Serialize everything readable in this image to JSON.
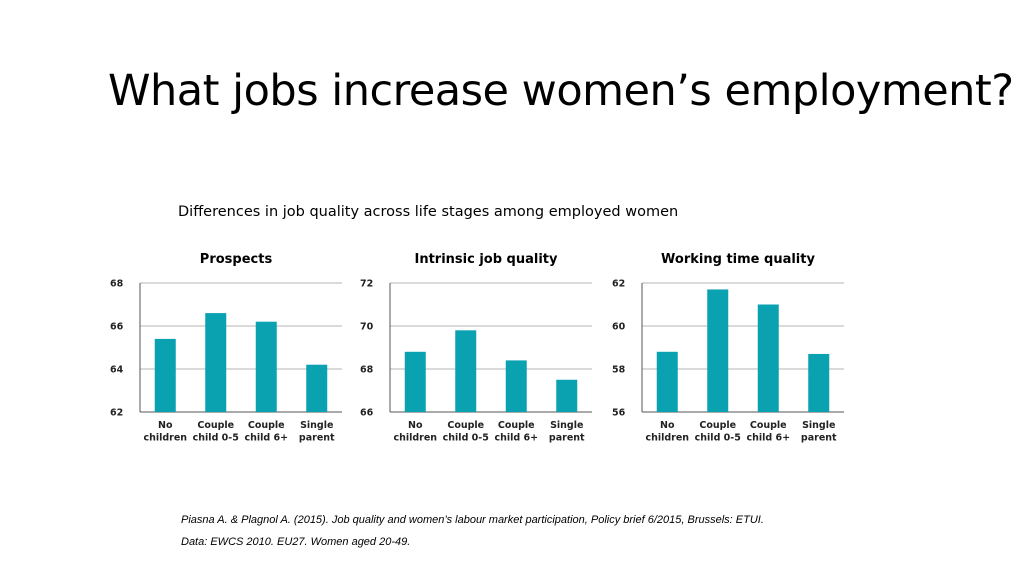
{
  "slide": {
    "title": "What jobs increase women’s employment?",
    "subtitle": "Differences in job quality across life stages among employed women"
  },
  "colors": {
    "bar": "#0aa1b1",
    "grid": "#b5b5b5",
    "axis": "#555555"
  },
  "chart_data": [
    {
      "type": "bar",
      "title": "Prospects",
      "categories": [
        [
          "No",
          "children"
        ],
        [
          "Couple",
          "child 0-5"
        ],
        [
          "Couple",
          "child 6+"
        ],
        [
          "Single",
          "parent"
        ]
      ],
      "values": [
        65.4,
        66.6,
        66.2,
        64.2
      ],
      "ylim": [
        62,
        68
      ],
      "yticks": [
        62,
        64,
        66,
        68
      ],
      "grid": true
    },
    {
      "type": "bar",
      "title": "Intrinsic job quality",
      "categories": [
        [
          "No",
          "children"
        ],
        [
          "Couple",
          "child 0-5"
        ],
        [
          "Couple",
          "child 6+"
        ],
        [
          "Single",
          "parent"
        ]
      ],
      "values": [
        68.8,
        69.8,
        68.4,
        67.5
      ],
      "ylim": [
        66,
        72
      ],
      "yticks": [
        66,
        68,
        70,
        72
      ],
      "grid": true
    },
    {
      "type": "bar",
      "title": "Working time quality",
      "categories": [
        [
          "No",
          "children"
        ],
        [
          "Couple",
          "child 0-5"
        ],
        [
          "Couple",
          "child 6+"
        ],
        [
          "Single",
          "parent"
        ]
      ],
      "values": [
        58.8,
        61.7,
        61.0,
        58.7
      ],
      "ylim": [
        56,
        62
      ],
      "yticks": [
        56,
        58,
        60,
        62
      ],
      "grid": true
    }
  ],
  "sources": {
    "line1": "Piasna A. & Plagnol A. (2015). Job quality and women’s labour market participation, Policy brief 6/2015, Brussels: ETUI.",
    "line2": "Data: EWCS 2010. EU27. Women aged 20-49."
  }
}
